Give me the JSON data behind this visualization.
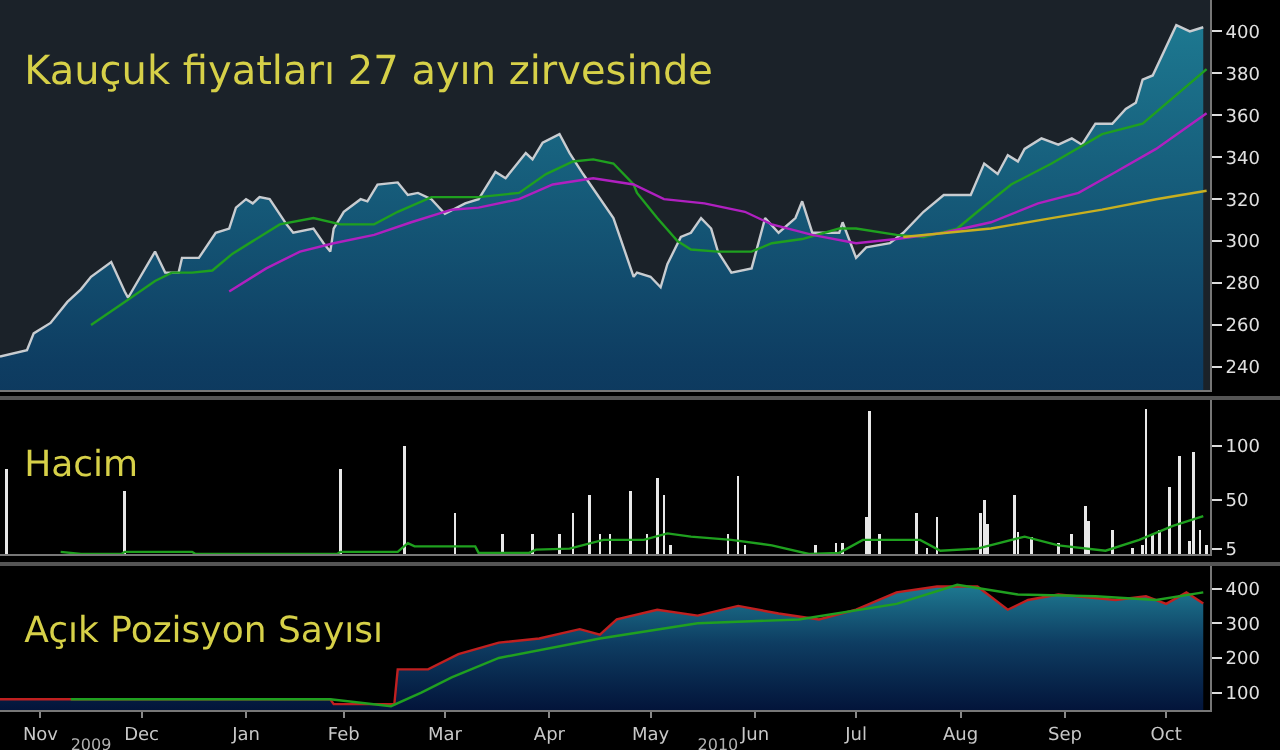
{
  "chart_data": [
    {
      "type": "area",
      "title": "Kauçuk fiyatları 27 ayın zirvesinde",
      "grid": false,
      "tick_labels": "y",
      "xlim": [
        "2009-11-04",
        "2010-10-29"
      ],
      "ylim": [
        229,
        415
      ],
      "yticks": [
        240,
        260,
        280,
        300,
        320,
        340,
        360,
        380,
        400
      ],
      "series": [
        {
          "color": "#c8ccd0",
          "x": [
            "2009-11-04",
            "2009-11-12",
            "2009-11-14",
            "2009-11-19",
            "2009-11-24",
            "2009-11-28",
            "2009-12-01",
            "2009-12-07",
            "2009-12-11",
            "2009-12-12",
            "2009-12-20",
            "2009-12-23",
            "2009-12-27",
            "2009-12-28",
            "2010-01-02",
            "2010-01-07",
            "2010-01-11",
            "2010-01-13",
            "2010-01-16",
            "2010-01-18",
            "2010-01-20",
            "2010-01-23",
            "2010-01-28",
            "2010-01-30",
            "2010-02-05",
            "2010-02-08",
            "2010-02-10",
            "2010-02-11",
            "2010-02-14",
            "2010-02-19",
            "2010-02-21",
            "2010-02-24",
            "2010-03-02",
            "2010-03-05",
            "2010-03-08",
            "2010-03-12",
            "2010-03-16",
            "2010-03-22",
            "2010-03-26",
            "2010-03-31",
            "2010-04-03",
            "2010-04-09",
            "2010-04-11",
            "2010-04-14",
            "2010-04-19",
            "2010-04-22",
            "2010-04-26",
            "2010-05-05",
            "2010-05-11",
            "2010-05-12",
            "2010-05-16",
            "2010-05-19",
            "2010-05-21",
            "2010-05-25",
            "2010-05-28",
            "2010-05-31",
            "2010-06-03",
            "2010-06-05",
            "2010-06-09",
            "2010-06-15",
            "2010-06-19",
            "2010-06-23",
            "2010-06-28",
            "2010-06-30",
            "2010-07-03",
            "2010-07-11",
            "2010-07-12",
            "2010-07-16",
            "2010-07-19",
            "2010-07-26",
            "2010-07-30",
            "2010-08-05",
            "2010-08-11",
            "2010-08-19",
            "2010-08-23",
            "2010-08-27",
            "2010-08-30",
            "2010-09-02",
            "2010-09-04",
            "2010-09-09",
            "2010-09-14",
            "2010-09-18",
            "2010-09-21",
            "2010-09-25",
            "2010-09-30",
            "2010-10-04",
            "2010-10-07",
            "2010-10-09",
            "2010-10-12",
            "2010-10-19",
            "2010-10-23",
            "2010-10-27"
          ],
          "values": [
            245,
            248,
            256,
            261,
            271,
            277,
            283,
            290,
            276,
            273,
            295,
            285,
            285,
            292,
            292,
            304,
            306,
            316,
            320,
            318,
            321,
            320,
            308,
            304,
            306,
            299,
            295,
            306,
            314,
            320,
            319,
            327,
            328,
            322,
            323,
            320,
            313,
            318,
            320,
            333,
            330,
            342,
            339,
            347,
            351,
            342,
            332,
            311,
            283,
            285,
            283,
            278,
            289,
            302,
            304,
            311,
            306,
            295,
            285,
            287,
            311,
            304,
            311,
            319,
            304,
            304,
            309,
            292,
            297,
            299,
            304,
            314,
            322,
            322,
            337,
            332,
            341,
            338,
            344,
            349,
            346,
            349,
            346,
            356,
            356,
            363,
            366,
            377,
            379,
            403,
            400,
            402
          ]
        },
        {
          "type": "line",
          "color": "#1fa01f",
          "x": [
            "2009-12-01",
            "2009-12-11",
            "2009-12-20",
            "2009-12-25",
            "2009-12-31",
            "2010-01-06",
            "2010-01-12",
            "2010-01-18",
            "2010-01-26",
            "2010-02-05",
            "2010-02-13",
            "2010-02-23",
            "2010-03-02",
            "2010-03-12",
            "2010-03-26",
            "2010-04-07",
            "2010-04-15",
            "2010-04-23",
            "2010-04-29",
            "2010-05-05",
            "2010-05-11",
            "2010-05-12",
            "2010-05-18",
            "2010-05-24",
            "2010-05-28",
            "2010-06-05",
            "2010-06-15",
            "2010-06-21",
            "2010-06-30",
            "2010-07-11",
            "2010-07-16",
            "2010-07-28",
            "2010-08-05",
            "2010-08-15",
            "2010-08-21",
            "2010-08-31",
            "2010-09-12",
            "2010-09-27",
            "2010-10-09",
            "2010-10-28"
          ],
          "values": [
            260,
            271,
            281,
            285,
            285,
            286,
            294,
            300,
            308,
            311,
            308,
            308,
            314,
            321,
            321,
            323,
            332,
            338,
            339,
            337,
            327,
            323,
            311,
            300,
            296,
            295,
            295,
            299,
            301,
            306,
            306,
            303,
            302,
            306,
            314,
            327,
            337,
            351,
            356,
            382
          ]
        },
        {
          "type": "line",
          "color": "#b020c0",
          "x": [
            "2010-01-11",
            "2010-01-22",
            "2010-02-01",
            "2010-02-11",
            "2010-02-23",
            "2010-03-06",
            "2010-03-18",
            "2010-03-26",
            "2010-04-07",
            "2010-04-17",
            "2010-04-29",
            "2010-05-11",
            "2010-05-20",
            "2010-06-01",
            "2010-06-13",
            "2010-06-21",
            "2010-07-03",
            "2010-07-16",
            "2010-07-28",
            "2010-08-11",
            "2010-08-25",
            "2010-09-08",
            "2010-09-20",
            "2010-10-01",
            "2010-10-13",
            "2010-10-28"
          ],
          "values": [
            276,
            287,
            295,
            299,
            303,
            309,
            315,
            316,
            320,
            327,
            330,
            327,
            320,
            318,
            314,
            308,
            303,
            299,
            301,
            304,
            309,
            318,
            323,
            333,
            344,
            361
          ]
        },
        {
          "type": "line",
          "color": "#c8b020",
          "x": [
            "2010-07-30",
            "2010-08-25",
            "2010-09-12",
            "2010-09-27",
            "2010-10-13",
            "2010-10-28"
          ],
          "values": [
            302,
            306,
            311,
            315,
            320,
            324
          ]
        }
      ]
    },
    {
      "type": "bar",
      "title": "Hacim",
      "grid": false,
      "tick_labels": "y",
      "xlim": [
        "2009-11-04",
        "2010-10-29"
      ],
      "ylim": [
        0,
        142
      ],
      "yticks": [
        5,
        50,
        100
      ],
      "series": [
        {
          "color": "#e8e8e8",
          "x": [
            "2009-11-06",
            "2009-12-11",
            "2010-02-13",
            "2010-03-04",
            "2010-03-19",
            "2010-04-02",
            "2010-04-11",
            "2010-04-19",
            "2010-04-23",
            "2010-04-28",
            "2010-05-01",
            "2010-05-04",
            "2010-05-10",
            "2010-05-15",
            "2010-05-18",
            "2010-05-20",
            "2010-05-22",
            "2010-06-08",
            "2010-06-11",
            "2010-06-13",
            "2010-07-04",
            "2010-07-10",
            "2010-07-12",
            "2010-07-19",
            "2010-07-20",
            "2010-07-23",
            "2010-08-03",
            "2010-08-06",
            "2010-08-09",
            "2010-08-22",
            "2010-08-23",
            "2010-08-24",
            "2010-09-01",
            "2010-09-02",
            "2010-09-06",
            "2010-09-14",
            "2010-09-18",
            "2010-09-22",
            "2010-09-23",
            "2010-09-30",
            "2010-10-06",
            "2010-10-09",
            "2010-10-10",
            "2010-10-12",
            "2010-10-14",
            "2010-10-17",
            "2010-10-20",
            "2010-10-23",
            "2010-10-24",
            "2010-10-26",
            "2010-10-28"
          ],
          "values": [
            78,
            58,
            78,
            100,
            38,
            18,
            18,
            18,
            38,
            54,
            18,
            18,
            58,
            18,
            70,
            54,
            8,
            18,
            72,
            8,
            8,
            10,
            10,
            34,
            132,
            18,
            38,
            6,
            34,
            38,
            50,
            28,
            54,
            20,
            16,
            10,
            18,
            44,
            30,
            22,
            6,
            8,
            134,
            18,
            22,
            62,
            90,
            12,
            94,
            22,
            8
          ]
        },
        {
          "type": "line",
          "color": "#1fa01f",
          "x": [
            "2009-11-22",
            "2009-11-28",
            "2009-12-10",
            "2009-12-11",
            "2009-12-31",
            "2010-01-01",
            "2010-02-12",
            "2010-02-13",
            "2010-03-02",
            "2010-03-05",
            "2010-03-07",
            "2010-03-25",
            "2010-03-26",
            "2010-04-10",
            "2010-04-12",
            "2010-04-22",
            "2010-05-02",
            "2010-05-14",
            "2010-05-21",
            "2010-05-28",
            "2010-06-09",
            "2010-06-21",
            "2010-07-02",
            "2010-07-11",
            "2010-07-18",
            "2010-08-04",
            "2010-08-10",
            "2010-08-21",
            "2010-09-04",
            "2010-09-14",
            "2010-09-28",
            "2010-10-08",
            "2010-10-18",
            "2010-10-27"
          ],
          "values": [
            2,
            0,
            0,
            2,
            2,
            0,
            0,
            2,
            2,
            10,
            7,
            7,
            1,
            1,
            4,
            5,
            13,
            13,
            19,
            16,
            13,
            8,
            0,
            1,
            13,
            13,
            3,
            5,
            16,
            8,
            3,
            13,
            26,
            35
          ]
        }
      ]
    },
    {
      "type": "area",
      "title": "Açık Pozisyon Sayısı",
      "grid": false,
      "xlim": [
        "2009-11-04",
        "2010-10-29"
      ],
      "ylim": [
        50,
        465
      ],
      "yticks": [
        100,
        200,
        300,
        400
      ],
      "x2lim": [
        "2009-11-04",
        "2010-10-29"
      ],
      "x2ticks": [
        {
          "value": "2009-12-01",
          "label": "2009"
        },
        {
          "value": "2010-06-05",
          "label": "2010"
        }
      ],
      "xticks": [
        {
          "value": "2009-11-16",
          "label": "Nov"
        },
        {
          "value": "2009-12-16",
          "label": "Dec"
        },
        {
          "value": "2010-01-16",
          "label": "Jan"
        },
        {
          "value": "2010-02-14",
          "label": "Feb"
        },
        {
          "value": "2010-03-16",
          "label": "Mar"
        },
        {
          "value": "2010-04-16",
          "label": "Apr"
        },
        {
          "value": "2010-05-16",
          "label": "May"
        },
        {
          "value": "2010-06-16",
          "label": "Jun"
        },
        {
          "value": "2010-07-16",
          "label": "Jul"
        },
        {
          "value": "2010-08-16",
          "label": "Aug"
        },
        {
          "value": "2010-09-16",
          "label": "Sep"
        },
        {
          "value": "2010-10-16",
          "label": "Oct"
        }
      ],
      "series": [
        {
          "color": "#c02020",
          "x": [
            "2009-11-04",
            "2010-02-10",
            "2010-02-11",
            "2010-03-01",
            "2010-03-02",
            "2010-03-11",
            "2010-03-20",
            "2010-04-01",
            "2010-04-13",
            "2010-04-25",
            "2010-05-01",
            "2010-05-06",
            "2010-05-18",
            "2010-05-30",
            "2010-06-11",
            "2010-06-23",
            "2010-07-05",
            "2010-07-16",
            "2010-07-28",
            "2010-08-09",
            "2010-08-21",
            "2010-08-30",
            "2010-09-05",
            "2010-09-14",
            "2010-10-01",
            "2010-10-10",
            "2010-10-16",
            "2010-10-22",
            "2010-10-27"
          ],
          "values": [
            81,
            81,
            67,
            67,
            167,
            167,
            211,
            244,
            256,
            283,
            267,
            311,
            339,
            322,
            350,
            328,
            311,
            339,
            389,
            406,
            406,
            339,
            367,
            383,
            367,
            378,
            356,
            389,
            357
          ]
        },
        {
          "type": "line",
          "color": "#20a020",
          "x": [
            "2009-11-25",
            "2010-02-10",
            "2010-02-28",
            "2010-03-09",
            "2010-03-18",
            "2010-04-01",
            "2010-05-01",
            "2010-05-30",
            "2010-06-29",
            "2010-07-28",
            "2010-08-15",
            "2010-09-02",
            "2010-09-25",
            "2010-10-13",
            "2010-10-27"
          ],
          "values": [
            81,
            81,
            61,
            100,
            144,
            200,
            256,
            300,
            311,
            356,
            411,
            383,
            378,
            367,
            389
          ]
        }
      ]
    }
  ]
}
